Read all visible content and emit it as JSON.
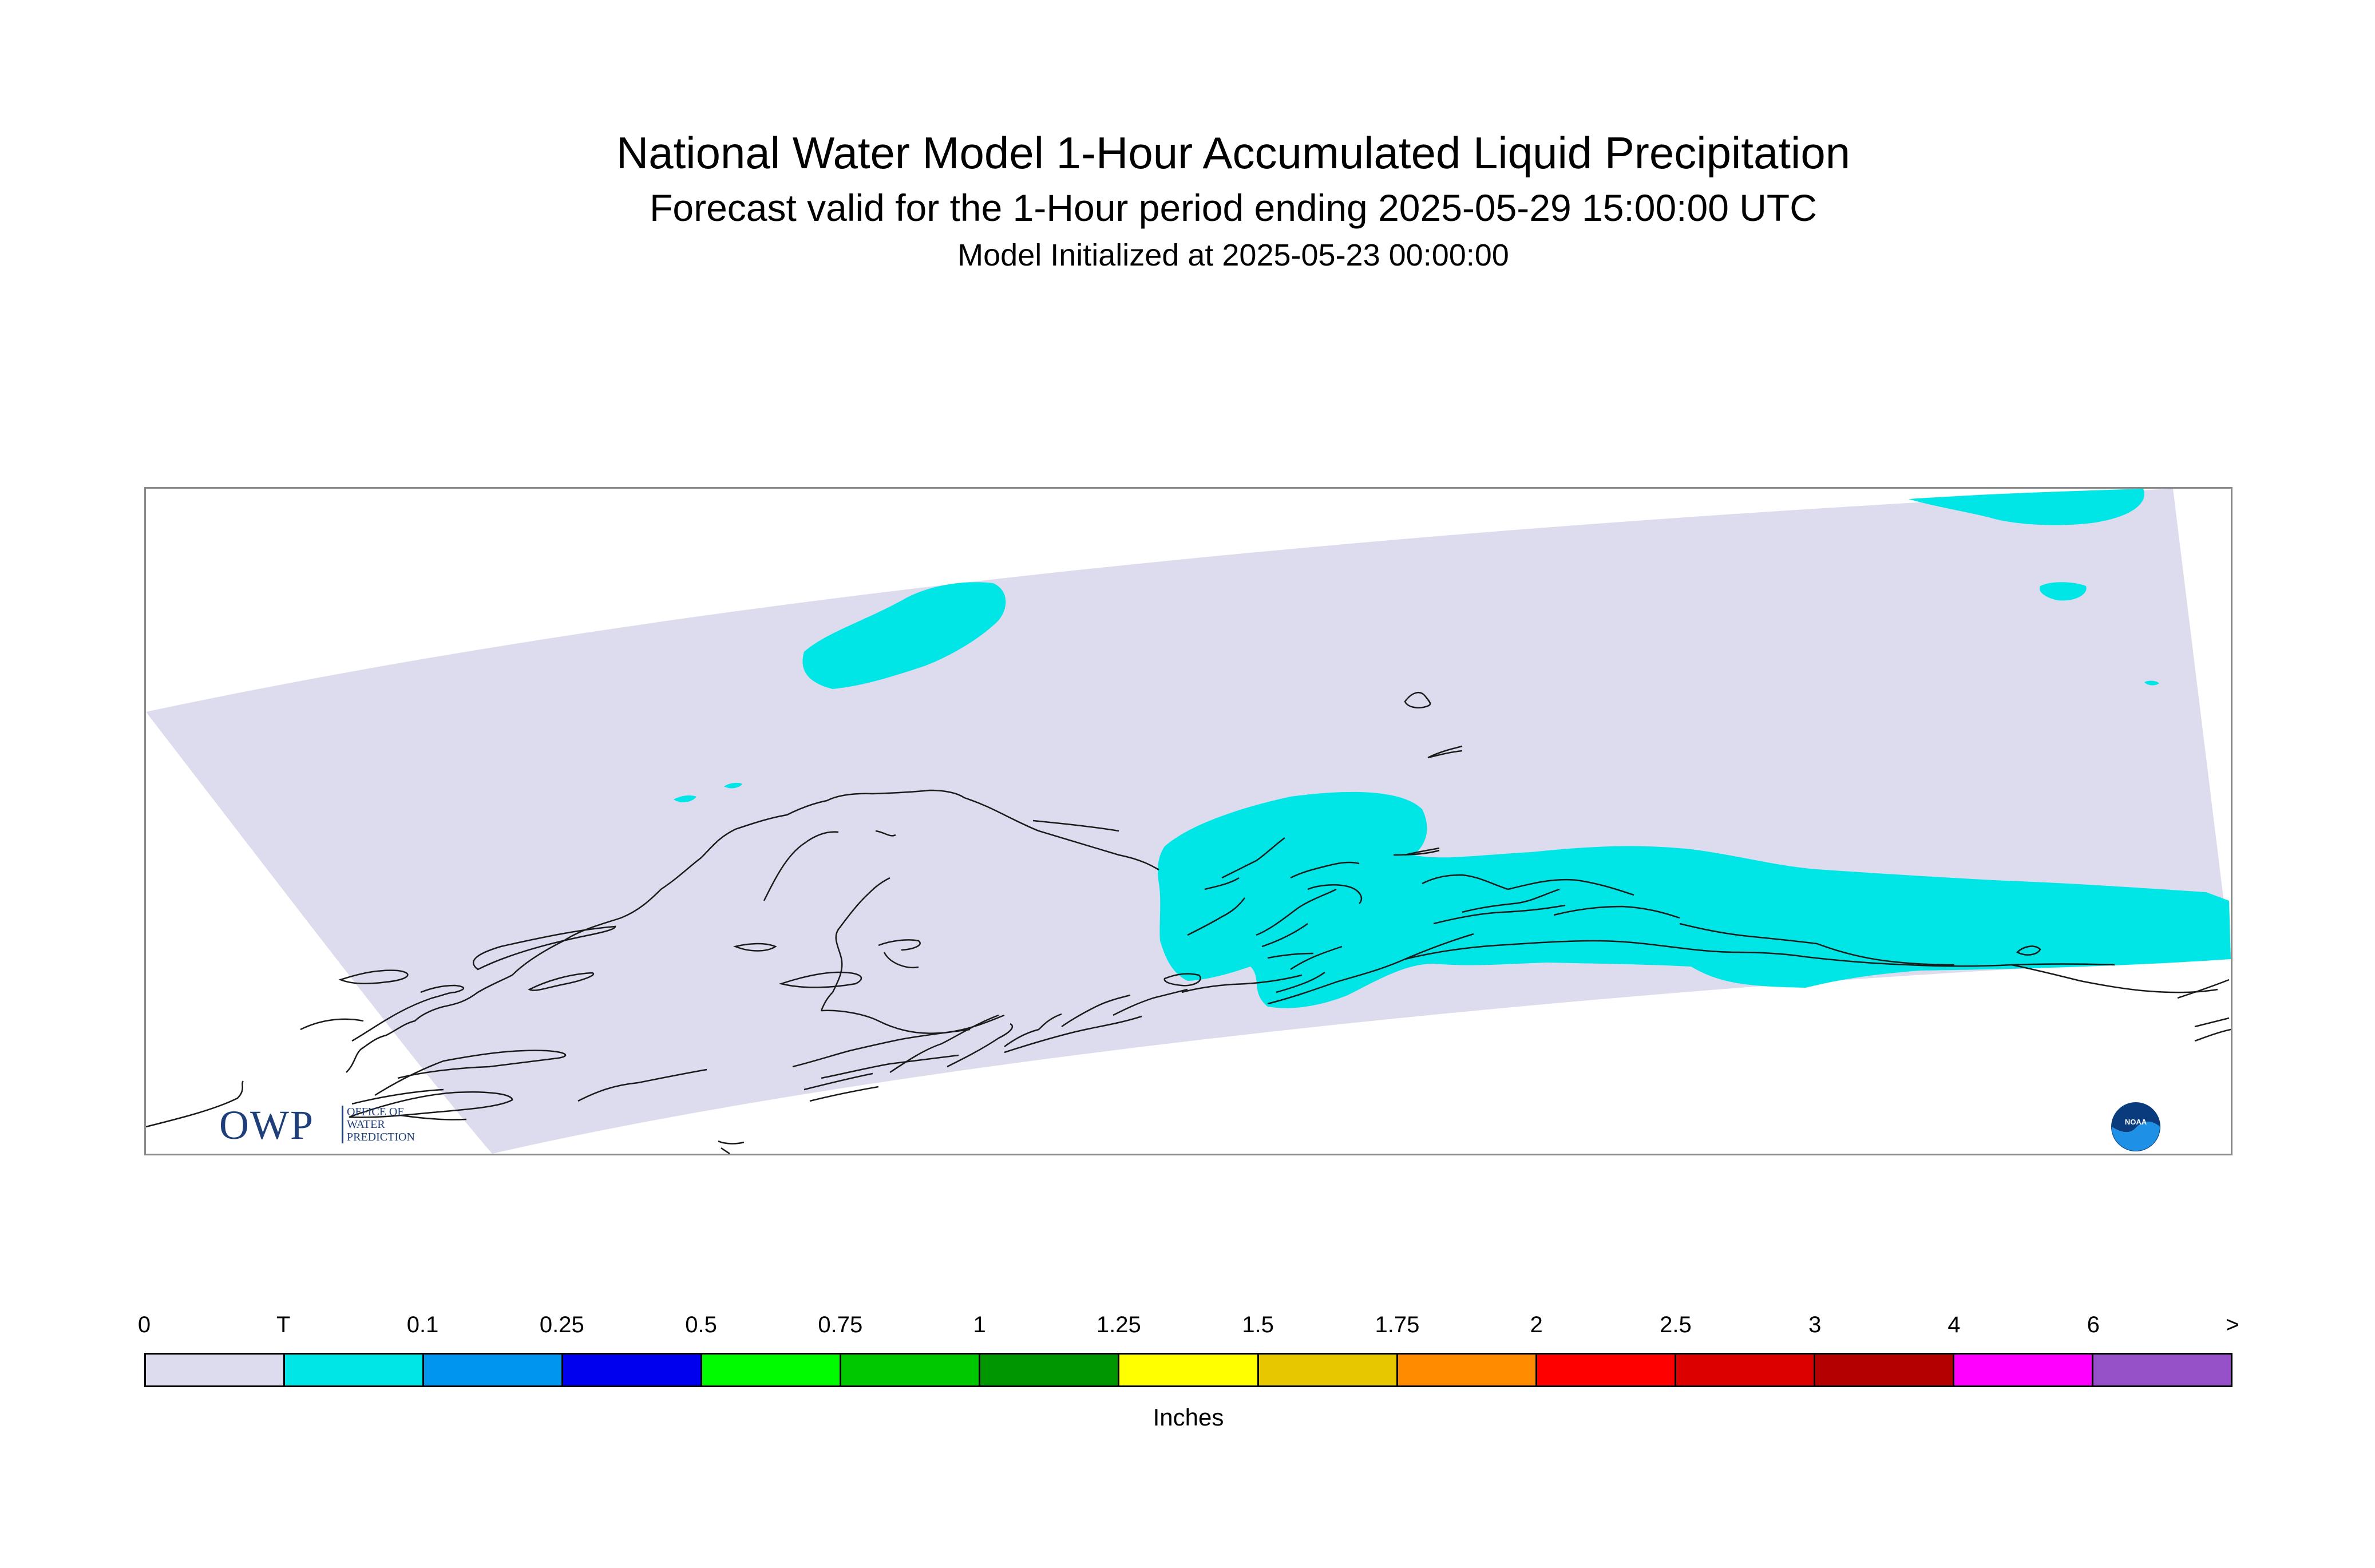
{
  "header": {
    "title": "National Water Model 1-Hour Accumulated Liquid Precipitation",
    "subtitle": "Forecast valid for the 1-Hour period ending 2025-05-29 15:00:00 UTC",
    "init": "Model Initialized at 2025-05-23 00:00:00"
  },
  "logos": {
    "owp": {
      "letters": "OWP",
      "line1": "OFFICE OF",
      "line2": "WATER",
      "line3": "PREDICTION"
    },
    "noaa": {
      "text": "NOAA"
    }
  },
  "map": {
    "domain_fill": "#dcdcee",
    "coast_color": "#1a1a1a",
    "precip_fill": "#00e6e6"
  },
  "legend": {
    "unit": "Inches",
    "ticks": [
      "0",
      "T",
      "0.1",
      "0.25",
      "0.5",
      "0.75",
      "1",
      "1.25",
      "1.5",
      "1.75",
      "2",
      "2.5",
      "3",
      "4",
      "6",
      ">"
    ],
    "colors": [
      "#dcdcee",
      "#00e6e6",
      "#0096f0",
      "#0000ee",
      "#00fa00",
      "#00c800",
      "#009600",
      "#ffff00",
      "#e6c800",
      "#ff8c00",
      "#ff0000",
      "#dc0000",
      "#b40000",
      "#ff00ff",
      "#9650c8"
    ]
  }
}
